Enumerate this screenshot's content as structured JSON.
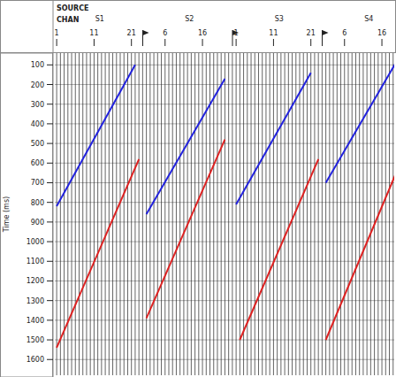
{
  "chart_data": {
    "type": "line",
    "header": {
      "source_label": "SOURCE",
      "channel_label": "CHAN"
    },
    "y_label": "Time (ms)",
    "ylim": [
      40,
      1680
    ],
    "yticks": [
      100,
      200,
      300,
      400,
      500,
      600,
      700,
      800,
      900,
      1000,
      1100,
      1200,
      1300,
      1400,
      1500,
      1600
    ],
    "xlim": [
      0.5,
      24.5
    ],
    "channels_per_gather": 24,
    "grid": true,
    "gathers": [
      {
        "source": "S1",
        "channel_ticks": [
          1,
          11,
          21
        ],
        "flag": true,
        "series": [
          {
            "color": "#2222dd",
            "x": [
              1,
              22
            ],
            "values": [
              820,
              100
            ]
          },
          {
            "color": "#dd2222",
            "x": [
              1,
              23
            ],
            "values": [
              1540,
              580
            ]
          }
        ]
      },
      {
        "source": "S2",
        "channel_ticks": [
          6,
          16
        ],
        "flag": true,
        "series": [
          {
            "color": "#2222dd",
            "x": [
              1,
              22
            ],
            "values": [
              860,
              170
            ]
          },
          {
            "color": "#dd2222",
            "x": [
              1,
              22
            ],
            "values": [
              1390,
              480
            ]
          }
        ]
      },
      {
        "source": "S3",
        "channel_ticks": [
          1,
          11,
          21
        ],
        "flag": true,
        "series": [
          {
            "color": "#2222dd",
            "x": [
              1,
              21
            ],
            "values": [
              810,
              140
            ]
          },
          {
            "color": "#dd2222",
            "x": [
              2,
              23
            ],
            "values": [
              1500,
              580
            ]
          }
        ]
      },
      {
        "source": "S4",
        "channel_ticks": [
          6,
          16
        ],
        "flag": false,
        "series": [
          {
            "color": "#2222dd",
            "x": [
              1,
              20
            ],
            "values": [
              700,
              80
            ]
          },
          {
            "color": "#dd2222",
            "x": [
              1,
              20
            ],
            "values": [
              1500,
              640
            ]
          }
        ]
      }
    ]
  }
}
